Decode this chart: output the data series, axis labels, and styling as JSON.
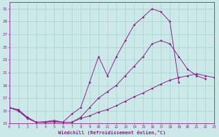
{
  "xlabel": "Windchill (Refroidissement éolien,°C)",
  "bg_color": "#cce8e8",
  "line_color": "#882288",
  "xmin": 0,
  "xmax": 23,
  "ymin": 13,
  "ymax": 32,
  "yticks": [
    13,
    15,
    17,
    19,
    21,
    23,
    25,
    27,
    29,
    31
  ],
  "xticks": [
    0,
    1,
    2,
    3,
    4,
    5,
    6,
    7,
    8,
    9,
    10,
    11,
    12,
    13,
    14,
    15,
    16,
    17,
    18,
    19,
    20,
    21,
    22,
    23
  ],
  "series1_x": [
    0,
    1,
    2,
    3,
    4,
    5,
    6,
    7,
    8,
    9,
    10,
    11,
    12,
    13,
    14,
    15,
    16,
    17,
    18,
    19
  ],
  "series1_y": [
    15.5,
    15.0,
    14.0,
    13.2,
    13.2,
    13.3,
    13.2,
    14.5,
    15.5,
    19.5,
    23.5,
    20.5,
    23.5,
    26.0,
    28.5,
    29.7,
    31.0,
    30.5,
    29.0,
    19.5
  ],
  "series2_x": [
    0,
    1,
    2,
    3,
    4,
    5,
    6,
    7,
    8,
    9,
    10,
    11,
    12,
    13,
    14,
    15,
    16,
    17,
    18,
    19,
    20,
    21,
    22
  ],
  "series2_y": [
    15.5,
    15.0,
    13.8,
    13.2,
    13.3,
    13.5,
    13.2,
    13.2,
    14.0,
    15.5,
    17.0,
    18.0,
    19.0,
    20.5,
    22.0,
    23.5,
    25.5,
    26.0,
    25.5,
    23.5,
    21.5,
    20.5,
    20.0
  ],
  "series3_x": [
    0,
    1,
    2,
    3,
    4,
    5,
    6,
    7,
    8,
    9,
    10,
    11,
    12,
    13,
    14,
    15,
    16,
    17,
    18,
    19,
    20,
    21,
    22,
    23
  ],
  "series3_y": [
    15.5,
    15.2,
    14.0,
    13.2,
    13.2,
    13.3,
    13.2,
    13.2,
    13.8,
    14.2,
    14.8,
    15.2,
    15.8,
    16.5,
    17.2,
    17.8,
    18.5,
    19.2,
    19.8,
    20.2,
    20.5,
    20.8,
    20.5,
    20.2
  ]
}
